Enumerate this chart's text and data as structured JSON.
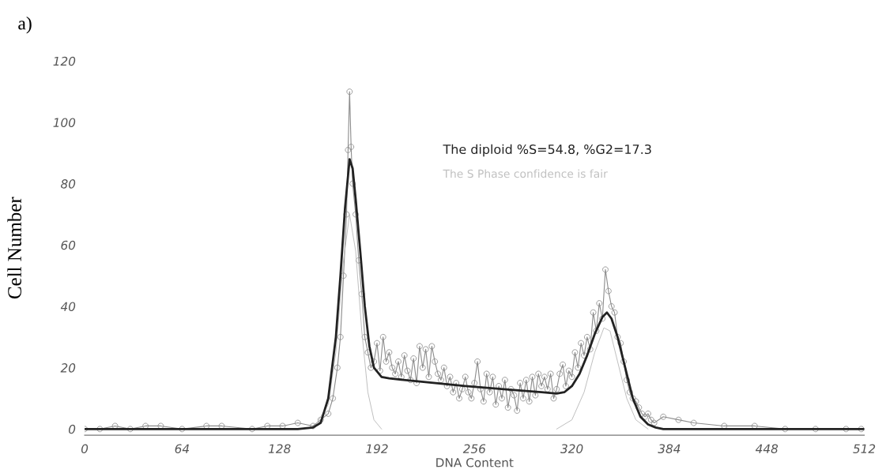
{
  "chart_data": {
    "type": "line",
    "xlabel": "DNA Content",
    "ylabel": "Cell Number",
    "annotations": [
      "a)",
      "The diploid %S=54.8, %G2=17.3",
      "The S Phase confidence is fair"
    ],
    "xlim": [
      0,
      512
    ],
    "ylim": [
      -2,
      120
    ],
    "xticks": [
      0,
      64,
      128,
      192,
      256,
      320,
      384,
      448,
      512
    ],
    "yticks": [
      0,
      20,
      40,
      60,
      80,
      100,
      120
    ],
    "grid": false,
    "legend": false,
    "series": [
      {
        "color": "#8c8c8c",
        "marker": "circle",
        "x": [
          0,
          10,
          20,
          30,
          40,
          50,
          64,
          80,
          90,
          110,
          120,
          130,
          140,
          150,
          155,
          160,
          163,
          166,
          168,
          170,
          172,
          173,
          174,
          175,
          176,
          178,
          180,
          182,
          184,
          186,
          188,
          190,
          192,
          194,
          196,
          198,
          200,
          202,
          204,
          206,
          208,
          210,
          212,
          214,
          216,
          218,
          220,
          222,
          224,
          226,
          228,
          230,
          232,
          234,
          236,
          238,
          240,
          242,
          244,
          246,
          248,
          250,
          252,
          254,
          256,
          258,
          260,
          262,
          264,
          266,
          268,
          270,
          272,
          274,
          276,
          278,
          280,
          282,
          284,
          286,
          288,
          290,
          292,
          294,
          296,
          298,
          300,
          302,
          304,
          306,
          308,
          310,
          312,
          314,
          316,
          318,
          320,
          322,
          324,
          326,
          328,
          330,
          332,
          334,
          336,
          338,
          340,
          342,
          344,
          346,
          348,
          350,
          352,
          354,
          356,
          358,
          360,
          362,
          364,
          366,
          368,
          370,
          372,
          374,
          380,
          390,
          400,
          420,
          440,
          460,
          480,
          500,
          510
        ],
        "values": [
          0,
          0,
          1,
          0,
          1,
          1,
          0,
          1,
          1,
          0,
          1,
          1,
          2,
          1,
          3,
          5,
          10,
          20,
          30,
          50,
          70,
          91,
          110,
          92,
          80,
          70,
          55,
          44,
          30,
          25,
          20,
          22,
          28,
          19,
          30,
          22,
          25,
          20,
          18,
          22,
          17,
          24,
          19,
          16,
          23,
          15,
          27,
          20,
          26,
          17,
          27,
          22,
          18,
          16,
          20,
          14,
          17,
          12,
          15,
          10,
          13,
          17,
          12,
          10,
          15,
          22,
          13,
          9,
          18,
          12,
          17,
          8,
          14,
          10,
          16,
          7,
          13,
          11,
          6,
          15,
          10,
          16,
          9,
          17,
          11,
          18,
          14,
          17,
          13,
          18,
          10,
          13,
          18,
          21,
          14,
          19,
          17,
          25,
          20,
          28,
          24,
          30,
          26,
          38,
          32,
          41,
          36,
          52,
          45,
          40,
          38,
          30,
          28,
          22,
          16,
          12,
          10,
          9,
          7,
          5,
          4,
          5,
          3,
          2,
          4,
          3,
          2,
          1,
          1,
          0,
          0,
          0,
          0
        ]
      },
      {
        "color": "#bdbdbd",
        "x": [
          150,
          160,
          165,
          170,
          174,
          178,
          182,
          186,
          190,
          195
        ],
        "values": [
          0,
          8,
          25,
          55,
          70,
          58,
          32,
          12,
          3,
          0
        ]
      },
      {
        "color": "#bdbdbd",
        "x": [
          310,
          320,
          328,
          335,
          341,
          345,
          350,
          356,
          362,
          370
        ],
        "values": [
          0,
          3,
          12,
          25,
          33,
          32,
          22,
          10,
          3,
          0
        ]
      },
      {
        "color": "#222222",
        "x": [
          0,
          140,
          150,
          155,
          160,
          165,
          168,
          171,
          174,
          176,
          178,
          181,
          184,
          187,
          190,
          195,
          200,
          220,
          250,
          280,
          300,
          310,
          315,
          320,
          325,
          330,
          335,
          340,
          343,
          346,
          350,
          355,
          360,
          365,
          370,
          375,
          380,
          512
        ],
        "values": [
          0,
          0,
          0.5,
          2,
          10,
          30,
          50,
          72,
          88,
          85,
          75,
          58,
          40,
          27,
          20,
          17,
          16.5,
          15.5,
          14,
          12.8,
          12,
          11.6,
          12,
          14,
          18,
          24,
          31,
          36.5,
          38,
          36,
          30,
          20,
          10,
          4,
          1.5,
          0.5,
          0,
          0
        ]
      }
    ]
  }
}
